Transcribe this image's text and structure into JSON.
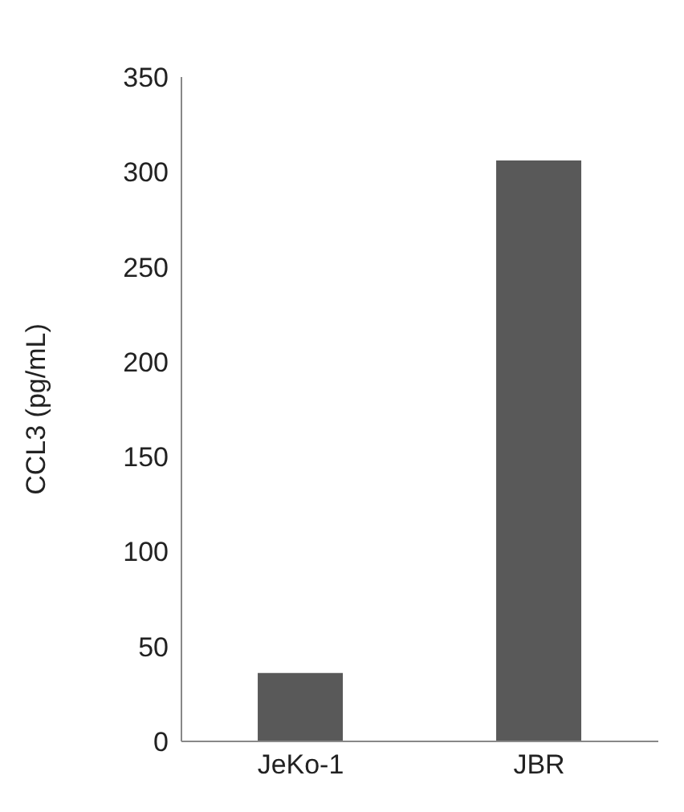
{
  "chart_data": {
    "type": "bar",
    "ylabel": "CCL3 (pg/mL)",
    "categories": [
      "JeKo-1",
      "JBR"
    ],
    "values": [
      36,
      306
    ],
    "color": "#595959",
    "ylim": [
      0,
      350
    ],
    "yticks": [
      0,
      50,
      100,
      150,
      200,
      250,
      300,
      350
    ],
    "grid": false
  }
}
